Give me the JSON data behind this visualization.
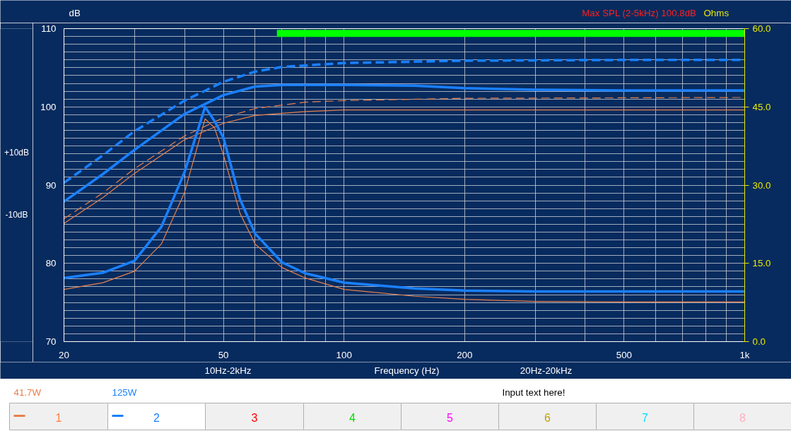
{
  "chart_data": {
    "type": "line",
    "title": "Max SPL (2-5kHz) 100.8dB",
    "xlabel": "Frequency (Hz)",
    "ylabel": "dB",
    "y2label": "Ohms",
    "log": "x",
    "grid": true,
    "legend": "bottom",
    "line_style": "solid",
    "xlim": [
      20,
      1000
    ],
    "ylim": [
      70,
      110
    ],
    "y2lim": [
      0,
      60
    ],
    "xticks": [
      20,
      {
        "value": 30,
        "label": null
      },
      {
        "value": 40,
        "label": null
      },
      50,
      {
        "value": 60,
        "label": null
      },
      {
        "value": 70,
        "label": null
      },
      {
        "value": 80,
        "label": null
      },
      {
        "value": 90,
        "label": null
      },
      100,
      200,
      {
        "value": 300,
        "label": null
      },
      {
        "value": 400,
        "label": null
      },
      500,
      {
        "value": 600,
        "label": null
      },
      {
        "value": 700,
        "label": null
      },
      {
        "value": 800,
        "label": null
      },
      {
        "value": 900,
        "label": null
      },
      {
        "value": 1000,
        "label": "1k"
      }
    ],
    "yticks": [
      70,
      {
        "value": 71,
        "label": null
      },
      {
        "value": 72,
        "label": null
      },
      {
        "value": 73,
        "label": null
      },
      {
        "value": 74,
        "label": null
      },
      {
        "value": 75,
        "label": null
      },
      {
        "value": 76,
        "label": null
      },
      {
        "value": 77,
        "label": null
      },
      {
        "value": 78,
        "label": null
      },
      {
        "value": 79,
        "label": null
      },
      80,
      {
        "value": 81,
        "label": null
      },
      {
        "value": 82,
        "label": null
      },
      {
        "value": 83,
        "label": null
      },
      {
        "value": 84,
        "label": null
      },
      {
        "value": 85,
        "label": null
      },
      {
        "value": 86,
        "label": null
      },
      {
        "value": 87,
        "label": null
      },
      {
        "value": 88,
        "label": null
      },
      {
        "value": 89,
        "label": null
      },
      90,
      {
        "value": 91,
        "label": null
      },
      {
        "value": 92,
        "label": null
      },
      {
        "value": 93,
        "label": null
      },
      {
        "value": 94,
        "label": null
      },
      {
        "value": 95,
        "label": null
      },
      {
        "value": 96,
        "label": null
      },
      {
        "value": 97,
        "label": null
      },
      {
        "value": 98,
        "label": null
      },
      {
        "value": 99,
        "label": null
      },
      100,
      {
        "value": 101,
        "label": null
      },
      {
        "value": 102,
        "label": null
      },
      {
        "value": 103,
        "label": null
      },
      {
        "value": 104,
        "label": null
      },
      {
        "value": 105,
        "label": null
      },
      {
        "value": 106,
        "label": null
      },
      {
        "value": 107,
        "label": null
      },
      {
        "value": 108,
        "label": null
      },
      {
        "value": 109,
        "label": null
      },
      110
    ],
    "y2ticks": [
      {
        "value": 0,
        "label": "0.0"
      },
      {
        "value": 15,
        "label": "15.0"
      },
      {
        "value": 30,
        "label": "30.0"
      },
      {
        "value": 45,
        "label": "45.0"
      },
      {
        "value": 60,
        "label": "60.0"
      }
    ],
    "series": [
      {
        "name": "41.7W",
        "color": "#e8804a",
        "x": [
          20,
          25,
          30,
          40,
          50,
          60,
          80,
          100,
          200,
          1000
        ],
        "values": [
          85.1,
          88.4,
          91.5,
          95.8,
          97.9,
          98.9,
          99.4,
          99.6,
          99.6,
          99.6
        ]
      },
      {
        "color": "#e8804a",
        "line_style": "dashed",
        "x": [
          20,
          25,
          30,
          40,
          50,
          60,
          80,
          100,
          200,
          1000
        ],
        "values": [
          85.7,
          89.0,
          92.1,
          96.3,
          98.6,
          99.8,
          100.6,
          100.8,
          101.1,
          101.2
        ]
      },
      {
        "color": "#e8804a",
        "axis": "y2",
        "x": [
          20,
          25,
          30,
          35,
          40,
          45,
          47.5,
          50,
          55,
          60,
          70,
          80,
          100,
          150,
          200,
          300,
          500,
          1000
        ],
        "values": [
          10.0,
          11.3,
          13.5,
          18.7,
          28.6,
          42.7,
          41.0,
          35.8,
          24.6,
          18.7,
          14.2,
          12.2,
          10.0,
          8.7,
          8.1,
          7.7,
          7.6,
          7.6
        ]
      },
      {
        "name": "125W",
        "color": "#1a80ff",
        "x": [
          20,
          25,
          30,
          40,
          50,
          60,
          70,
          100,
          150,
          200,
          300,
          500,
          1000
        ],
        "values": [
          87.9,
          91.4,
          94.5,
          99.1,
          101.5,
          102.6,
          102.8,
          102.8,
          102.7,
          102.4,
          102.2,
          102.1,
          102.1
        ]
      },
      {
        "color": "#1a80ff",
        "line_style": "dashed",
        "x": [
          20,
          25,
          30,
          40,
          50,
          60,
          70,
          100,
          200,
          500,
          1000
        ],
        "values": [
          90.3,
          93.8,
          96.9,
          100.8,
          103.2,
          104.5,
          105.1,
          105.6,
          105.9,
          106.0,
          106.0
        ]
      },
      {
        "color": "#1a80ff",
        "axis": "y2",
        "x": [
          20,
          25,
          30,
          35,
          40,
          45,
          47.5,
          50,
          55,
          60,
          70,
          80,
          100,
          150,
          200,
          300,
          500,
          1000
        ],
        "values": [
          12.2,
          13.2,
          15.5,
          22.0,
          32.5,
          45.0,
          42.3,
          39.1,
          27.3,
          20.7,
          15.2,
          13.1,
          11.3,
          10.2,
          9.8,
          9.6,
          9.6,
          9.6
        ]
      },
      {
        "color": "#00ff00",
        "x": [
          68,
          1000
        ],
        "values": [
          109.4,
          109.4
        ]
      }
    ],
    "annotations": [
      "+10dB",
      "-10dB",
      "10Hz-2kHz",
      "20Hz-20kHz",
      "Input text here!",
      "1",
      "2",
      "3",
      "4",
      "5",
      "6",
      "7",
      "8"
    ]
  }
}
